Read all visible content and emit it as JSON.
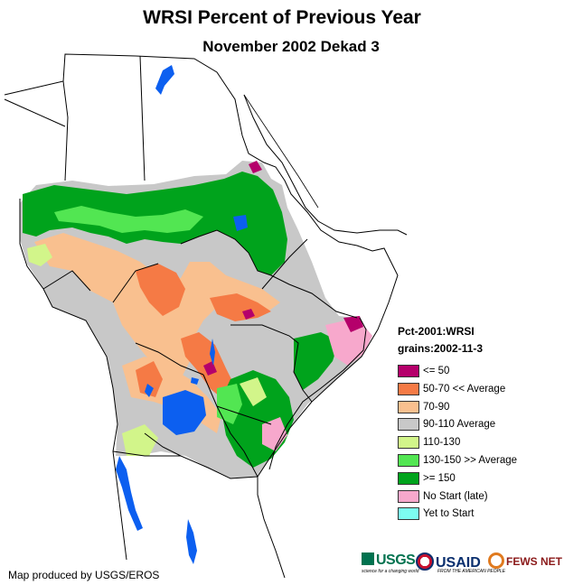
{
  "header": {
    "title": "WRSI Percent of Previous Year",
    "subtitle": "November 2002 Dekad 3"
  },
  "legend": {
    "heading1": "Pct-2001:WRSI",
    "heading2": "grains:2002-11-3",
    "items": [
      {
        "label": "<= 50",
        "color": "#b5006b"
      },
      {
        "label": "50-70 << Average",
        "color": "#f57a45"
      },
      {
        "label": "70-90",
        "color": "#f9c08f"
      },
      {
        "label": "90-110 Average",
        "color": "#c8c8c8"
      },
      {
        "label": "110-130",
        "color": "#d2f58a"
      },
      {
        "label": "130-150 >> Average",
        "color": "#52e652"
      },
      {
        "label": ">= 150",
        "color": "#00a31c"
      },
      {
        "label": "No Start (late)",
        "color": "#f7a8cc"
      },
      {
        "label": "Yet to Start",
        "color": "#7dfcf0"
      }
    ]
  },
  "map": {
    "water_color": "#0c5ff0",
    "border_color": "#000000"
  },
  "footer": {
    "credit": "Map produced by USGS/EROS",
    "logos": {
      "usgs": "USGS",
      "usgs_tagline": "science for a changing world",
      "usaid": "USAID",
      "usaid_tagline": "FROM THE AMERICAN PEOPLE",
      "fews": "FEWS NET"
    }
  }
}
